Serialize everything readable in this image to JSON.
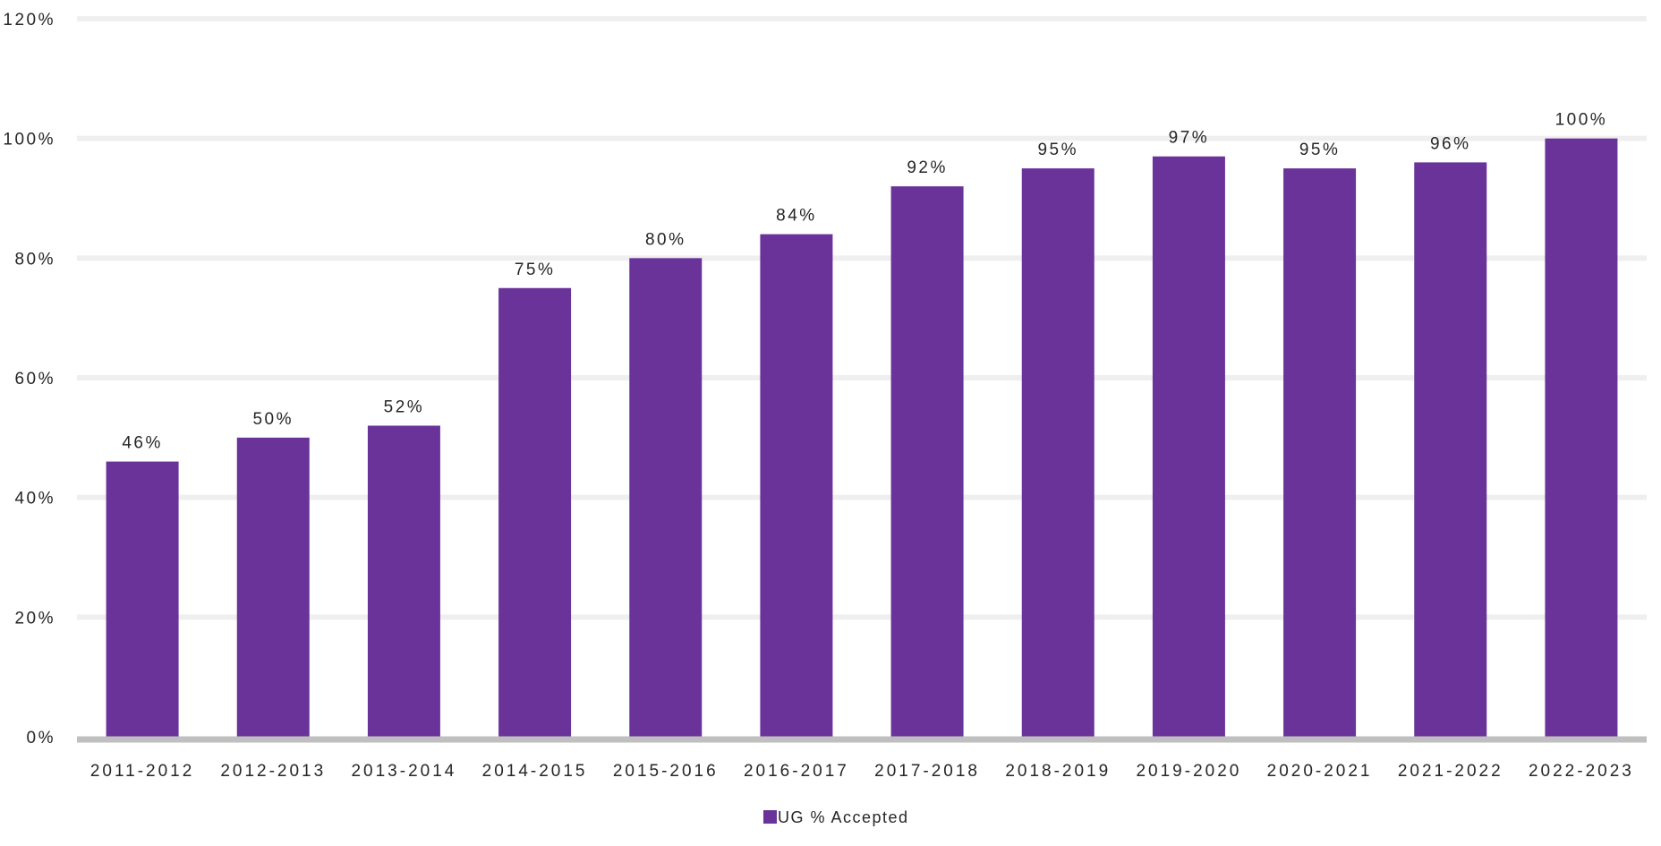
{
  "chart_data": {
    "type": "bar",
    "categories": [
      "2011-2012",
      "2012-2013",
      "2013-2014",
      "2014-2015",
      "2015-2016",
      "2016-2017",
      "2017-2018",
      "2018-2019",
      "2019-2020",
      "2020-2021",
      "2021-2022",
      "2022-2023"
    ],
    "series": [
      {
        "name": "UG % Accepted",
        "values": [
          46,
          50,
          52,
          75,
          80,
          84,
          92,
          95,
          97,
          95,
          96,
          100
        ],
        "data_labels": [
          "46%",
          "50%",
          "52%",
          "75%",
          "80%",
          "84%",
          "92%",
          "95%",
          "97%",
          "95%",
          "96%",
          "100%"
        ],
        "color": "#6a3399"
      }
    ],
    "y_ticks": [
      0,
      20,
      40,
      60,
      80,
      100,
      120
    ],
    "y_tick_labels": [
      "0%",
      "20%",
      "40%",
      "60%",
      "80%",
      "100%",
      "120%"
    ],
    "ylim": [
      0,
      120
    ],
    "title": "",
    "xlabel": "",
    "ylabel": "",
    "grid": true,
    "gridline_color": "#efefef",
    "axis_color": "#bfbfbf",
    "legend": {
      "position": "bottom-center",
      "label": "UG % Accepted"
    }
  }
}
